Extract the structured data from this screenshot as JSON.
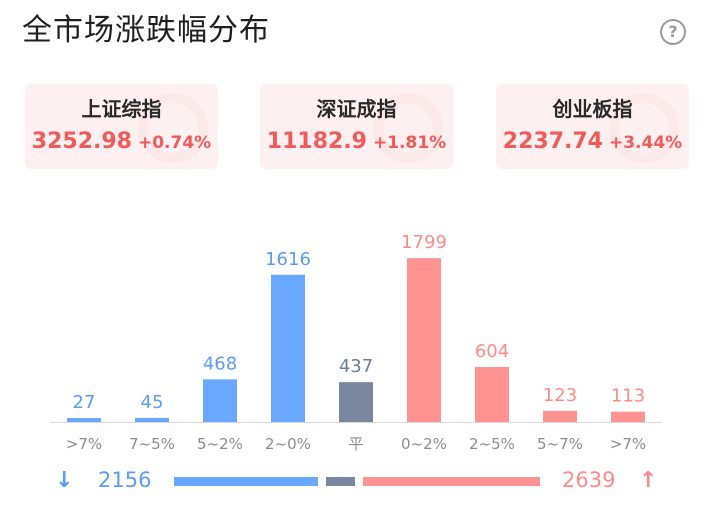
{
  "title": "全市场涨跌幅分布",
  "help_icon": "question-circle-icon",
  "indices": [
    {
      "name": "上证综指",
      "price": "3252.98",
      "change": "+0.74%"
    },
    {
      "name": "深证成指",
      "price": "11182.9",
      "change": "+1.81%"
    },
    {
      "name": "创业板指",
      "price": "2237.74",
      "change": "+3.44%"
    }
  ],
  "colors": {
    "down": "#6aa8ff",
    "flat": "#7a879e",
    "up": "#ff9292",
    "up_text": "#f25a5a"
  },
  "chart_data": {
    "type": "bar",
    "categories": [
      ">7%",
      "7~5%",
      "5~2%",
      "2~0%",
      "平",
      "0~2%",
      "2~5%",
      "5~7%",
      ">7%"
    ],
    "values": [
      27,
      45,
      468,
      1616,
      437,
      1799,
      604,
      123,
      113
    ],
    "groups": [
      "down",
      "down",
      "down",
      "down",
      "flat",
      "up",
      "up",
      "up",
      "up"
    ],
    "ylim": [
      0,
      1800
    ],
    "title": "",
    "xlabel": "",
    "ylabel": ""
  },
  "summary": {
    "down_total": "2156",
    "flat_total": "437",
    "up_total": "2639"
  }
}
